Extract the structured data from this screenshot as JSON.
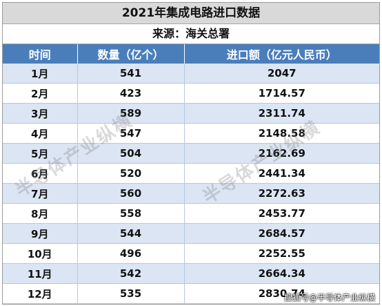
{
  "title": "2021年集成电路进口数据",
  "source": "来源：海关总署",
  "headers": [
    "时间",
    "数量（亿个）",
    "进口额（亿元人民币）"
  ],
  "rows": [
    [
      "1月",
      "541",
      "2047"
    ],
    [
      "2月",
      "423",
      "1714.57"
    ],
    [
      "3月",
      "589",
      "2311.74"
    ],
    [
      "4月",
      "547",
      "2148.58"
    ],
    [
      "5月",
      "504",
      "2162.69"
    ],
    [
      "6月",
      "520",
      "2441.34"
    ],
    [
      "7月",
      "560",
      "2272.63"
    ],
    [
      "8月",
      "558",
      "2453.77"
    ],
    [
      "9月",
      "544",
      "2684.57"
    ],
    [
      "10月",
      "496",
      "2252.55"
    ],
    [
      "11月",
      "542",
      "2664.34"
    ],
    [
      "12月",
      "535",
      "2830.74"
    ]
  ],
  "watermark": "半导体产业纵横",
  "credit": "搜狐号@半导体产业纵横",
  "colors": {
    "header_bg": "#4a7ebb",
    "band_bg": "#dbe5f3",
    "title_bg": "#d9d9d9"
  }
}
